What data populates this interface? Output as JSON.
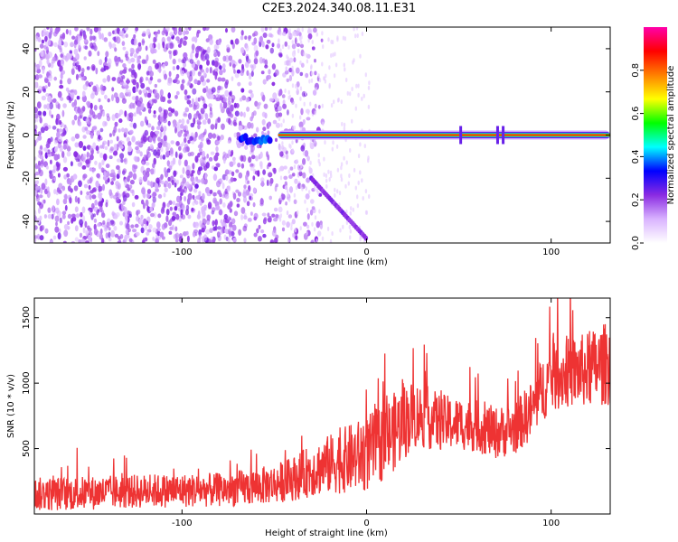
{
  "title": "C2E3.2024.340.08.11.E31",
  "chart_data": [
    {
      "type": "heatmap",
      "xlabel": "Height of straight line (km)",
      "ylabel": "Frequency (Hz)",
      "xlim": [
        -180,
        132
      ],
      "ylim": [
        -50,
        50
      ],
      "x_ticks": [
        -100,
        0,
        100
      ],
      "x_tick_labels": [
        "-100",
        "0",
        "100"
      ],
      "y_ticks": [
        -40,
        -20,
        0,
        20,
        40
      ],
      "y_tick_labels": [
        "-40",
        "-20",
        "0",
        "20",
        "40"
      ],
      "colorbar": {
        "label": "Normalized spectral amplitude",
        "range": [
          0,
          1
        ],
        "ticks": [
          0.0,
          0.2,
          0.4,
          0.6,
          0.8
        ],
        "tick_labels": [
          "0.0",
          "0.2",
          "0.4",
          "0.6",
          "0.8"
        ],
        "colors": [
          "#ffffff",
          "#d9b3ff",
          "#8a2be2",
          "#0000ff",
          "#00ffff",
          "#00ff00",
          "#ffff00",
          "#ff8000",
          "#ff0000",
          "#ff00aa"
        ]
      },
      "features": {
        "noise_region_x": [
          -180,
          -48
        ],
        "carrier_line": {
          "x": [
            -48,
            132
          ],
          "frequency": 0,
          "amplitude": 0.9
        },
        "carrier_segment_weak": {
          "x": [
            -68,
            -52
          ],
          "frequency": -2,
          "amplitude": 0.3
        },
        "chirp": {
          "x": [
            -30,
            0
          ],
          "frequency": [
            -20,
            -48
          ],
          "amplitude": 0.2
        },
        "spikes_x": [
          51,
          71,
          74
        ]
      }
    },
    {
      "type": "line",
      "xlabel": "Height of straight line (km)",
      "ylabel": "SNR (10 * v/v)",
      "xlim": [
        -180,
        132
      ],
      "ylim": [
        0,
        1650
      ],
      "x_ticks": [
        -100,
        0,
        100
      ],
      "x_tick_labels": [
        "-100",
        "0",
        "100"
      ],
      "y_ticks": [
        500,
        1000,
        1500
      ],
      "y_tick_labels": [
        "500",
        "1000",
        "1500"
      ],
      "color": "#ee3333",
      "x": [
        -180,
        -150,
        -120,
        -100,
        -80,
        -65,
        -50,
        -40,
        -30,
        -20,
        -10,
        0,
        10,
        20,
        25,
        30,
        40,
        50,
        60,
        70,
        80,
        90,
        95,
        100,
        110,
        120,
        130
      ],
      "values": [
        150,
        160,
        175,
        180,
        185,
        200,
        230,
        270,
        330,
        380,
        420,
        460,
        560,
        700,
        760,
        750,
        700,
        690,
        670,
        620,
        650,
        800,
        950,
        1040,
        1080,
        1100,
        1150
      ],
      "spread": [
        130,
        130,
        130,
        130,
        130,
        140,
        150,
        170,
        200,
        230,
        260,
        290,
        300,
        300,
        260,
        250,
        220,
        200,
        200,
        200,
        200,
        230,
        250,
        260,
        270,
        290,
        320
      ]
    }
  ]
}
